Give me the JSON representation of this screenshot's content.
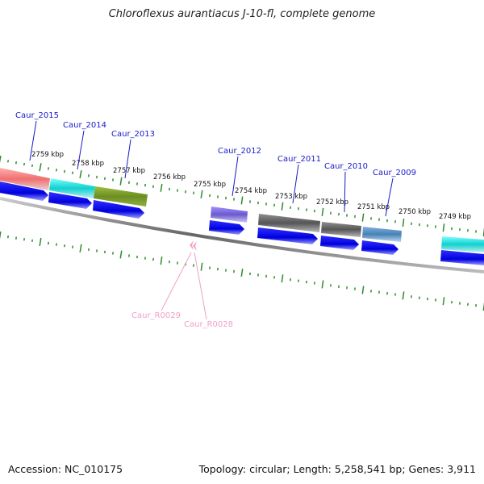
{
  "title": "Chloroflexus aurantiacus J-10-fl, complete genome",
  "footer": {
    "accession": "Accession: NC_010175",
    "topology": "Topology: circular; Length: 5,258,541 bp; Genes: 3,911"
  },
  "kbp_labels": [
    "2759 kbp",
    "2758 kbp",
    "2757 kbp",
    "2756 kbp",
    "2755 kbp",
    "2754 kbp",
    "2753 kbp",
    "2752 kbp",
    "2751 kbp",
    "2750 kbp",
    "2749 kbp"
  ],
  "gene_labels": [
    "Caur_2015",
    "Caur_2014",
    "Caur_2013",
    "Caur_2012",
    "Caur_2011",
    "Caur_2010",
    "Caur_2009"
  ],
  "rna_labels": [
    "Caur_R0029",
    "Caur_R0028"
  ],
  "colors": {
    "backbone": "#777777",
    "tick": "#2e8b2e",
    "cds": "#0000ee",
    "gene_label": "#1a1acc",
    "rna_label": "#f0a0c8"
  }
}
